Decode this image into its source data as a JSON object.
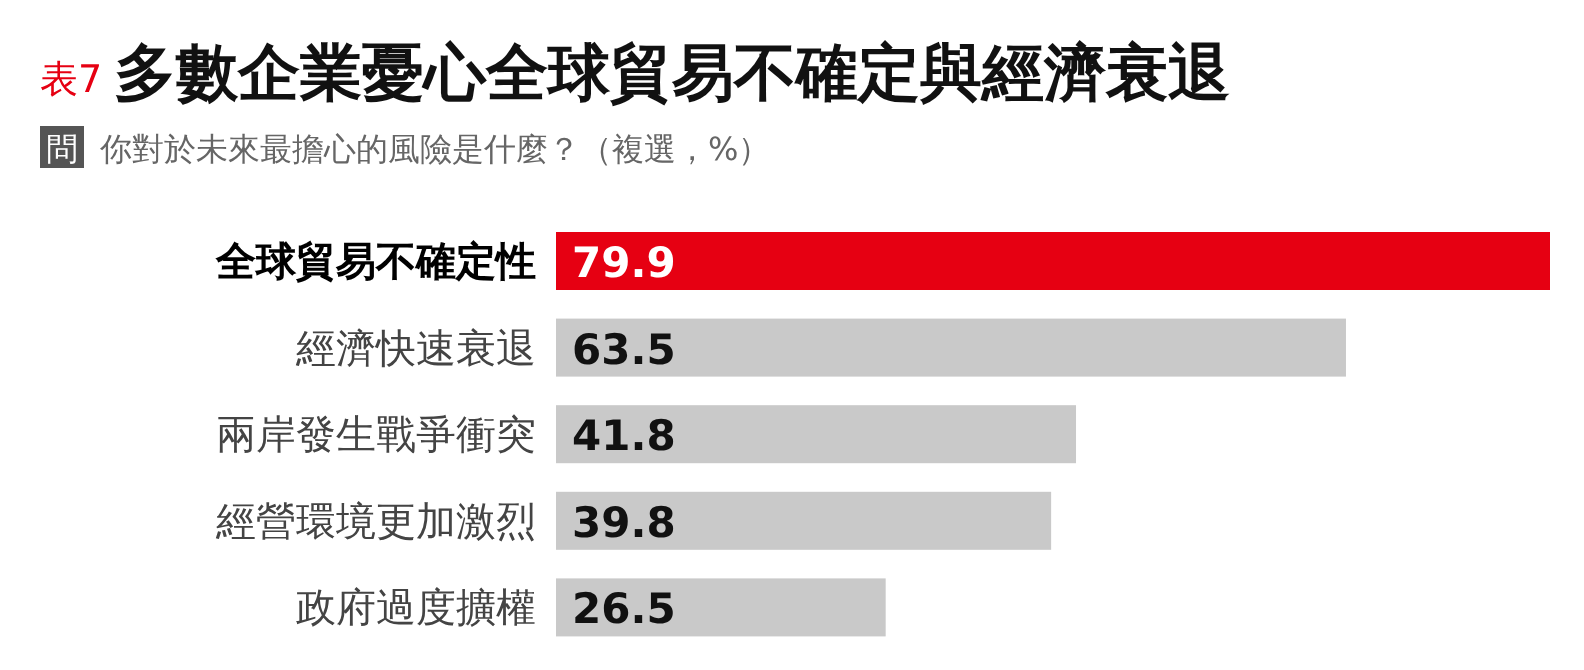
{
  "chart_data": {
    "type": "bar",
    "orientation": "horizontal",
    "title": "多數企業憂心全球貿易不確定與經濟衰退",
    "subtitle": "你對於未來最擔心的風險是什麼？（複選，%）",
    "annotations": [
      "表7",
      "問"
    ],
    "categories": [
      "全球貿易不確定性",
      "經濟快速衰退",
      "兩岸發生戰爭衝突",
      "經營環境更加激烈",
      "政府過度擴權"
    ],
    "values": [
      79.9,
      63.5,
      41.8,
      39.8,
      26.5
    ],
    "colors": [
      "#e60012",
      "#c9c9c9",
      "#c9c9c9",
      "#c9c9c9",
      "#c9c9c9"
    ],
    "data_labels": true
  }
}
